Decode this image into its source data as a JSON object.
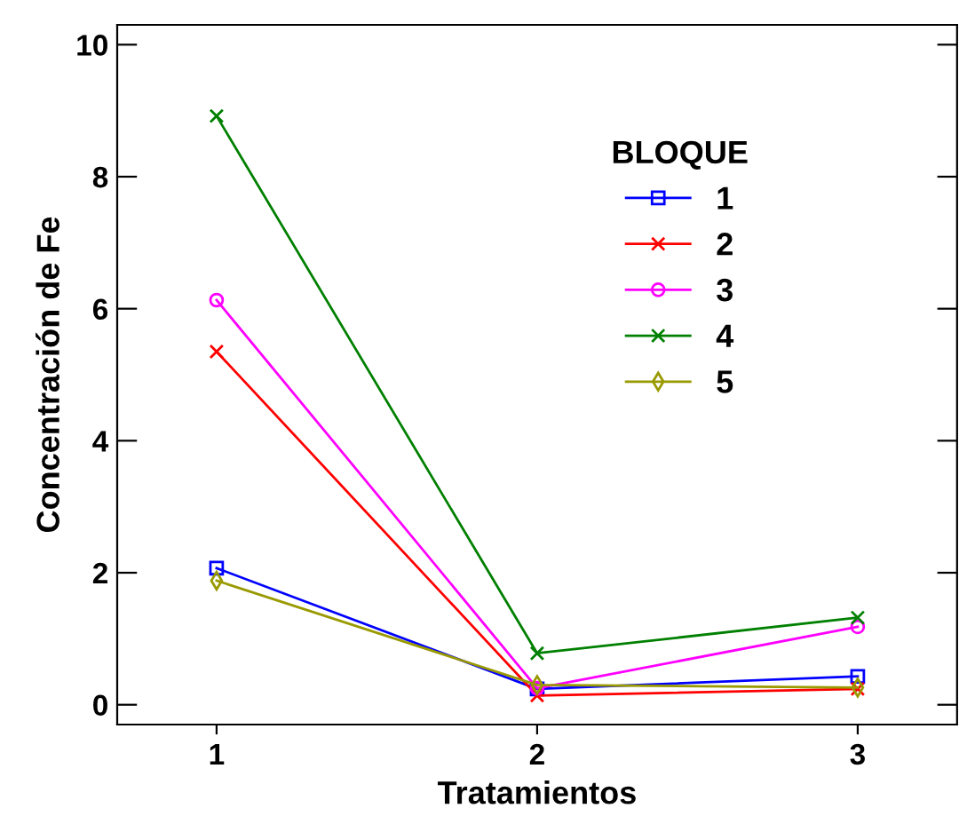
{
  "chart_data": {
    "type": "line",
    "xlabel": "Tratamientos",
    "ylabel": "Concentración de Fe",
    "legend_title": "BLOQUE",
    "legend": "center",
    "x": [
      1,
      2,
      3
    ],
    "xlim": [
      0.69,
      3.31
    ],
    "xticks": [
      1,
      2,
      3
    ],
    "ylim": [
      -0.3,
      10.3
    ],
    "yticks": [
      0,
      2,
      4,
      6,
      8,
      10
    ],
    "grid": false,
    "series": [
      {
        "name": "1",
        "color": "#0000ff",
        "marker": "square",
        "values": [
          2.07,
          0.24,
          0.43
        ]
      },
      {
        "name": "2",
        "color": "#ff0000",
        "marker": "cross",
        "values": [
          5.35,
          0.14,
          0.24
        ]
      },
      {
        "name": "3",
        "color": "#ff00ff",
        "marker": "circle",
        "values": [
          6.13,
          0.25,
          1.18
        ]
      },
      {
        "name": "4",
        "color": "#008000",
        "marker": "cross",
        "values": [
          8.92,
          0.78,
          1.32
        ]
      },
      {
        "name": "5",
        "color": "#999900",
        "marker": "diamond",
        "values": [
          1.88,
          0.3,
          0.26
        ]
      }
    ]
  }
}
